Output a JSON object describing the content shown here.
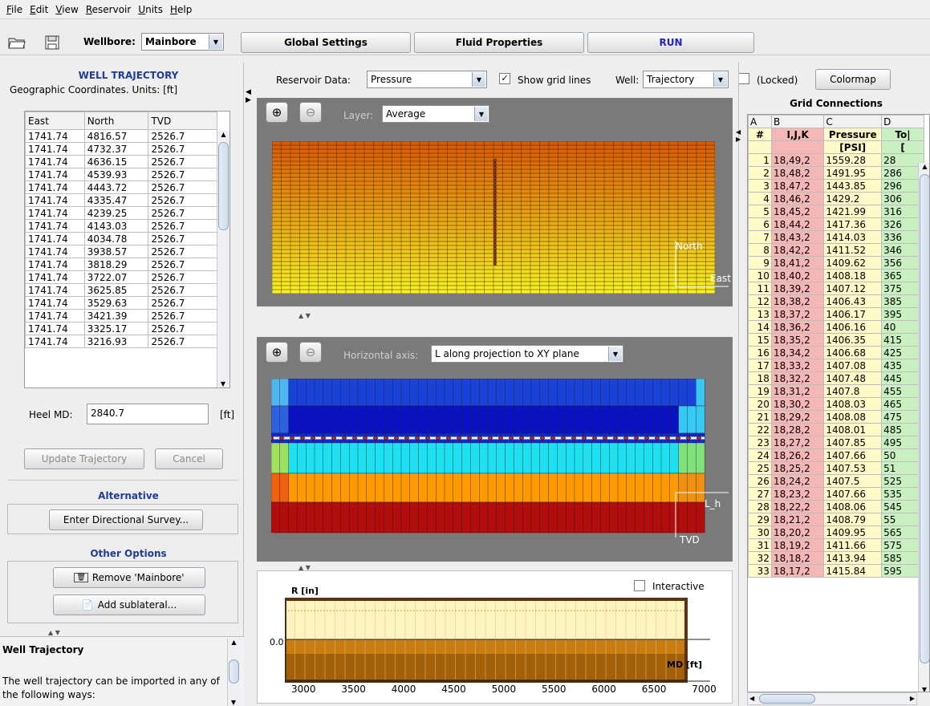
{
  "menu": [
    "File",
    "Edit",
    "View",
    "Reservoir",
    "Units",
    "Help"
  ],
  "toolbar": {
    "wellbore_label": "Wellbore:",
    "wellbore_value": "Mainbore",
    "global_settings": "Global Settings",
    "fluid_properties": "Fluid Properties",
    "run": "RUN"
  },
  "left": {
    "title": "WELL TRAJECTORY",
    "subtitle": "Geographic Coordinates. Units: [ft]",
    "columns": [
      "East",
      "North",
      "TVD"
    ],
    "rows": [
      [
        "1741.74",
        "4816.57",
        "2526.7"
      ],
      [
        "1741.74",
        "4732.37",
        "2526.7"
      ],
      [
        "1741.74",
        "4636.15",
        "2526.7"
      ],
      [
        "1741.74",
        "4539.93",
        "2526.7"
      ],
      [
        "1741.74",
        "4443.72",
        "2526.7"
      ],
      [
        "1741.74",
        "4335.47",
        "2526.7"
      ],
      [
        "1741.74",
        "4239.25",
        "2526.7"
      ],
      [
        "1741.74",
        "4143.03",
        "2526.7"
      ],
      [
        "1741.74",
        "4034.78",
        "2526.7"
      ],
      [
        "1741.74",
        "3938.57",
        "2526.7"
      ],
      [
        "1741.74",
        "3818.29",
        "2526.7"
      ],
      [
        "1741.74",
        "3722.07",
        "2526.7"
      ],
      [
        "1741.74",
        "3625.85",
        "2526.7"
      ],
      [
        "1741.74",
        "3529.63",
        "2526.7"
      ],
      [
        "1741.74",
        "3421.39",
        "2526.7"
      ],
      [
        "1741.74",
        "3325.17",
        "2526.7"
      ],
      [
        "1741.74",
        "3216.93",
        "2526.7"
      ]
    ],
    "heel_md_label": "Heel MD:",
    "heel_md_value": "2840.7",
    "heel_md_unit": "[ft]",
    "update_btn": "Update Trajectory",
    "cancel_btn": "Cancel",
    "alternative_title": "Alternative",
    "directional_survey_btn": "Enter Directional Survey...",
    "other_title": "Other Options",
    "remove_btn": "Remove 'Mainbore'",
    "add_sublateral_btn": "Add sublateral...",
    "help_title": "Well Trajectory",
    "help_text": "The well trajectory can be imported in any of the following ways:"
  },
  "center": {
    "reservoir_data_label": "Reservoir Data:",
    "reservoir_data_value": "Pressure",
    "show_grid_lines": "Show grid lines",
    "well_label": "Well:",
    "well_value": "Trajectory",
    "locked": "(Locked)",
    "colormap_btn": "Colormap",
    "layer_label": "Layer:",
    "layer_value": "Average",
    "north": "North",
    "east": "East",
    "horizontal_axis_label": "Horizontal axis:",
    "horizontal_axis_value": "L along projection to XY plane",
    "l_h": "L_h",
    "tvd": "TVD",
    "interactive": "Interactive",
    "r_label": "R [in]",
    "md_label": "MD [ft]",
    "zero_label": "0.0",
    "md_ticks": [
      "3000",
      "3500",
      "4000",
      "4500",
      "5000",
      "5500",
      "6000",
      "6500",
      "7000"
    ]
  },
  "right": {
    "title": "Grid Connections",
    "col_letters": [
      "A",
      "B",
      "C",
      "D"
    ],
    "headers": [
      "#",
      "I,J,K",
      "Pressure",
      "To|"
    ],
    "units": [
      "",
      "",
      "[PSI]",
      "["
    ],
    "rows": [
      [
        "1",
        "18,49,2",
        "1559.28",
        "28"
      ],
      [
        "2",
        "18,48,2",
        "1491.95",
        "286"
      ],
      [
        "3",
        "18,47,2",
        "1443.85",
        "296"
      ],
      [
        "4",
        "18,46,2",
        "1429.2",
        "306"
      ],
      [
        "5",
        "18,45,2",
        "1421.99",
        "316"
      ],
      [
        "6",
        "18,44,2",
        "1417.36",
        "326"
      ],
      [
        "7",
        "18,43,2",
        "1414.03",
        "336"
      ],
      [
        "8",
        "18,42,2",
        "1411.52",
        "346"
      ],
      [
        "9",
        "18,41,2",
        "1409.62",
        "356"
      ],
      [
        "10",
        "18,40,2",
        "1408.18",
        "365"
      ],
      [
        "11",
        "18,39,2",
        "1407.12",
        "375"
      ],
      [
        "12",
        "18,38,2",
        "1406.43",
        "385"
      ],
      [
        "13",
        "18,37,2",
        "1406.17",
        "395"
      ],
      [
        "14",
        "18,36,2",
        "1406.16",
        "40"
      ],
      [
        "15",
        "18,35,2",
        "1406.35",
        "415"
      ],
      [
        "16",
        "18,34,2",
        "1406.68",
        "425"
      ],
      [
        "17",
        "18,33,2",
        "1407.08",
        "435"
      ],
      [
        "18",
        "18,32,2",
        "1407.48",
        "445"
      ],
      [
        "19",
        "18,31,2",
        "1407.8",
        "455"
      ],
      [
        "20",
        "18,30,2",
        "1408.03",
        "465"
      ],
      [
        "21",
        "18,29,2",
        "1408.08",
        "475"
      ],
      [
        "22",
        "18,28,2",
        "1408.01",
        "485"
      ],
      [
        "23",
        "18,27,2",
        "1407.85",
        "495"
      ],
      [
        "24",
        "18,26,2",
        "1407.66",
        "50"
      ],
      [
        "25",
        "18,25,2",
        "1407.53",
        "51"
      ],
      [
        "26",
        "18,24,2",
        "1407.5",
        "525"
      ],
      [
        "27",
        "18,23,2",
        "1407.66",
        "535"
      ],
      [
        "28",
        "18,22,2",
        "1408.06",
        "545"
      ],
      [
        "29",
        "18,21,2",
        "1408.79",
        "55"
      ],
      [
        "30",
        "18,20,2",
        "1409.95",
        "565"
      ],
      [
        "31",
        "18,19,2",
        "1411.66",
        "575"
      ],
      [
        "32",
        "18,18,2",
        "1413.94",
        "585"
      ],
      [
        "33",
        "18,17,2",
        "1415.84",
        "595"
      ]
    ]
  }
}
